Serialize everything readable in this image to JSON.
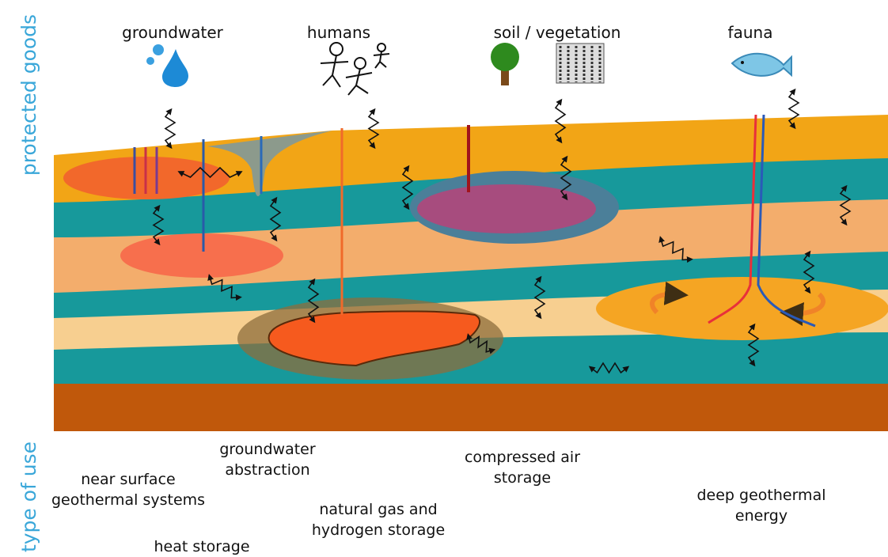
{
  "side_labels": {
    "protected_goods": "protected goods",
    "type_of_use": "type of use"
  },
  "protected_goods": [
    "groundwater",
    "humans",
    "soil / vegetation",
    "fauna"
  ],
  "uses": [
    {
      "lines": [
        "near surface",
        "geothermal systems"
      ]
    },
    {
      "lines": [
        "groundwater",
        "abstraction"
      ]
    },
    {
      "lines": [
        "heat storage"
      ]
    },
    {
      "lines": [
        "natural gas and",
        "hydrogen  storage"
      ]
    },
    {
      "lines": [
        "compressed air",
        "storage"
      ]
    },
    {
      "lines": [
        "deep geothermal",
        "energy"
      ]
    }
  ]
}
